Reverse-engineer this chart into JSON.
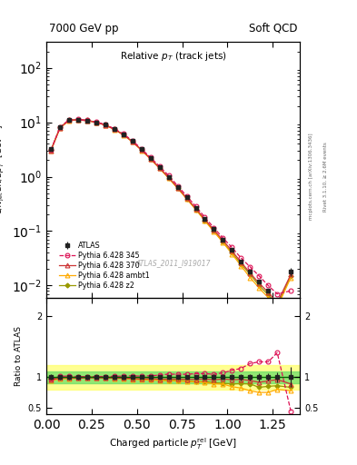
{
  "title_left": "7000 GeV pp",
  "title_right": "Soft QCD",
  "plot_title": "Relative p_T (track jets)",
  "xlabel": "Charged particle p_{T}^{rel} [GeV]",
  "ylabel_main": "1/N_{jet} dN/dp_{T}^{rel} [GeV^{-1}]",
  "ylabel_ratio": "Ratio to ATLAS",
  "right_label1": "Rivet 3.1.10, ≥ 2.6M events",
  "right_label2": "mcplots.cern.ch [arXiv:1306.3436]",
  "watermark": "ATLAS_2011_I919017",
  "xlim": [
    0.0,
    1.4
  ],
  "ylim_main": [
    0.006,
    300
  ],
  "ylim_ratio": [
    0.4,
    2.3
  ],
  "atlas_x": [
    0.025,
    0.075,
    0.125,
    0.175,
    0.225,
    0.275,
    0.325,
    0.375,
    0.425,
    0.475,
    0.525,
    0.575,
    0.625,
    0.675,
    0.725,
    0.775,
    0.825,
    0.875,
    0.925,
    0.975,
    1.025,
    1.075,
    1.125,
    1.175,
    1.225,
    1.275,
    1.35
  ],
  "atlas_y": [
    3.2,
    8.0,
    11.0,
    11.2,
    10.8,
    10.0,
    9.0,
    7.5,
    6.0,
    4.5,
    3.2,
    2.2,
    1.5,
    1.0,
    0.65,
    0.42,
    0.27,
    0.17,
    0.11,
    0.07,
    0.045,
    0.028,
    0.018,
    0.012,
    0.008,
    0.005,
    0.018
  ],
  "atlas_yerr": [
    0.15,
    0.3,
    0.4,
    0.4,
    0.4,
    0.3,
    0.3,
    0.25,
    0.2,
    0.15,
    0.1,
    0.08,
    0.06,
    0.04,
    0.025,
    0.016,
    0.01,
    0.007,
    0.005,
    0.003,
    0.002,
    0.0015,
    0.001,
    0.0008,
    0.0005,
    0.0004,
    0.003
  ],
  "py345_x": [
    0.025,
    0.075,
    0.125,
    0.175,
    0.225,
    0.275,
    0.325,
    0.375,
    0.425,
    0.475,
    0.525,
    0.575,
    0.625,
    0.675,
    0.725,
    0.775,
    0.825,
    0.875,
    0.925,
    0.975,
    1.025,
    1.075,
    1.125,
    1.175,
    1.225,
    1.275,
    1.35
  ],
  "py345_y": [
    3.1,
    8.1,
    11.2,
    11.3,
    10.9,
    10.1,
    9.1,
    7.6,
    6.1,
    4.6,
    3.25,
    2.25,
    1.55,
    1.05,
    0.68,
    0.44,
    0.285,
    0.18,
    0.115,
    0.075,
    0.05,
    0.032,
    0.022,
    0.015,
    0.01,
    0.007,
    0.008
  ],
  "py370_x": [
    0.025,
    0.075,
    0.125,
    0.175,
    0.225,
    0.275,
    0.325,
    0.375,
    0.425,
    0.475,
    0.525,
    0.575,
    0.625,
    0.675,
    0.725,
    0.775,
    0.825,
    0.875,
    0.925,
    0.975,
    1.025,
    1.075,
    1.125,
    1.175,
    1.225,
    1.275,
    1.35
  ],
  "py370_y": [
    3.05,
    7.9,
    10.9,
    11.0,
    10.7,
    9.9,
    8.9,
    7.4,
    5.9,
    4.4,
    3.1,
    2.15,
    1.45,
    0.97,
    0.63,
    0.405,
    0.26,
    0.165,
    0.105,
    0.068,
    0.043,
    0.027,
    0.017,
    0.011,
    0.0075,
    0.0048,
    0.016
  ],
  "pyambt1_x": [
    0.025,
    0.075,
    0.125,
    0.175,
    0.225,
    0.275,
    0.325,
    0.375,
    0.425,
    0.475,
    0.525,
    0.575,
    0.625,
    0.675,
    0.725,
    0.775,
    0.825,
    0.875,
    0.925,
    0.975,
    1.025,
    1.075,
    1.125,
    1.175,
    1.225,
    1.275,
    1.35
  ],
  "pyambt1_y": [
    3.0,
    7.8,
    10.7,
    11.0,
    10.7,
    9.9,
    8.85,
    7.35,
    5.85,
    4.35,
    3.05,
    2.1,
    1.42,
    0.94,
    0.61,
    0.39,
    0.25,
    0.155,
    0.098,
    0.062,
    0.038,
    0.023,
    0.014,
    0.009,
    0.006,
    0.004,
    0.014
  ],
  "pyz2_x": [
    0.025,
    0.075,
    0.125,
    0.175,
    0.225,
    0.275,
    0.325,
    0.375,
    0.425,
    0.475,
    0.525,
    0.575,
    0.625,
    0.675,
    0.725,
    0.775,
    0.825,
    0.875,
    0.925,
    0.975,
    1.025,
    1.075,
    1.125,
    1.175,
    1.225,
    1.275,
    1.35
  ],
  "pyz2_y": [
    3.1,
    8.0,
    11.0,
    11.2,
    10.9,
    10.0,
    9.0,
    7.5,
    5.95,
    4.4,
    3.1,
    2.12,
    1.43,
    0.95,
    0.615,
    0.395,
    0.25,
    0.158,
    0.1,
    0.063,
    0.04,
    0.025,
    0.016,
    0.01,
    0.0068,
    0.0043,
    0.015
  ],
  "color_atlas": "#222222",
  "color_py345": "#dd1155",
  "color_py370": "#cc3333",
  "color_pyambt1": "#ffaa00",
  "color_pyz2": "#999900",
  "bg_yellow": "#ffff66",
  "bg_green": "#66dd66"
}
